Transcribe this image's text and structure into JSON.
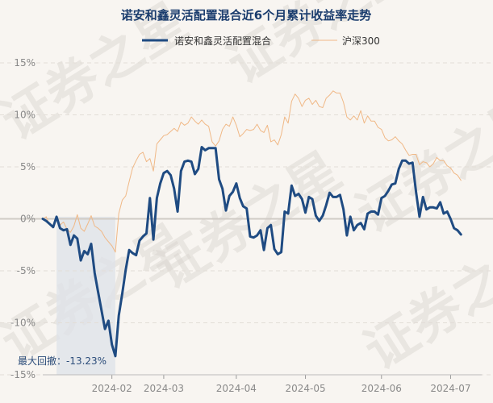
{
  "chart_data": {
    "type": "line",
    "title": "诺安和鑫灵活配置混合近6个月累计收益率走势",
    "watermark": "证券之星",
    "xlabel": "",
    "ylabel": "",
    "ylim": [
      -15,
      15
    ],
    "yticks": [
      15,
      10,
      5,
      0,
      -5,
      -10,
      -15
    ],
    "ytick_labels": [
      "15%",
      "10%",
      "5%",
      "0%",
      "-5%",
      "-10%",
      "-15%"
    ],
    "x_range": [
      0,
      127
    ],
    "xticks": [
      {
        "label": "2024-02",
        "index": 20
      },
      {
        "label": "2024-03",
        "index": 35
      },
      {
        "label": "2024-04",
        "index": 56
      },
      {
        "label": "2024-05",
        "index": 76
      },
      {
        "label": "2024-06",
        "index": 98
      },
      {
        "label": "2024-07",
        "index": 118
      }
    ],
    "legend_position": "top-center",
    "series": [
      {
        "name": "诺安和鑫灵活配置混合",
        "color": "#1f4b82",
        "values": [
          0.0,
          -0.2,
          -0.5,
          -0.8,
          0.2,
          -0.9,
          -1.1,
          -1.0,
          -2.5,
          -1.6,
          -1.9,
          -4.0,
          -3.1,
          -3.4,
          -2.4,
          -5.2,
          -7.0,
          -8.8,
          -10.6,
          -9.8,
          -12.1,
          -13.2,
          -9.3,
          -7.2,
          -4.9,
          -3.0,
          -3.3,
          -3.5,
          -2.1,
          -1.7,
          -1.4,
          2.0,
          -2.0,
          2.0,
          3.4,
          4.4,
          4.6,
          4.2,
          2.9,
          0.7,
          4.6,
          5.5,
          5.6,
          5.5,
          4.3,
          4.8,
          6.9,
          6.6,
          6.8,
          6.8,
          6.8,
          3.8,
          2.9,
          0.8,
          2.2,
          2.6,
          3.4,
          2.0,
          1.2,
          1.0,
          -1.7,
          -1.8,
          -1.6,
          -1.1,
          -3.0,
          -0.9,
          -0.6,
          -2.9,
          -3.4,
          -3.2,
          0.7,
          0.5,
          3.2,
          2.2,
          2.4,
          1.9,
          0.6,
          2.1,
          1.9,
          0.3,
          -0.2,
          0.3,
          1.3,
          2.5,
          2.1,
          2.1,
          2.3,
          0.9,
          -1.6,
          0.2,
          -1.1,
          -0.6,
          -0.4,
          -1.0,
          0.5,
          0.7,
          0.7,
          0.4,
          2.0,
          2.2,
          2.7,
          3.3,
          3.4,
          4.8,
          5.6,
          5.6,
          5.3,
          5.4,
          2.6,
          0.2,
          2.1,
          0.9,
          1.1,
          1.1,
          1.0,
          1.6,
          0.5,
          0.7,
          0.0,
          -0.9,
          -1.1,
          -1.5
        ],
        "line_width": 3
      },
      {
        "name": "沪深300",
        "color": "#f0b886",
        "values": [
          0.0,
          0.2,
          -0.6,
          -0.8,
          0.2,
          -0.6,
          -0.3,
          -1.0,
          -1.3,
          -0.7,
          0.4,
          -0.9,
          -1.2,
          -0.5,
          0.3,
          -0.7,
          -0.9,
          -1.2,
          -1.8,
          -2.2,
          -2.6,
          -3.2,
          0.5,
          1.8,
          2.2,
          3.6,
          4.9,
          5.6,
          6.2,
          6.4,
          5.5,
          5.8,
          4.6,
          7.2,
          7.6,
          8.0,
          8.1,
          8.4,
          8.7,
          8.4,
          9.3,
          9.0,
          9.2,
          9.8,
          9.4,
          9.1,
          9.5,
          9.1,
          8.9,
          7.4,
          7.0,
          7.5,
          8.6,
          9.1,
          8.9,
          9.8,
          9.0,
          7.9,
          8.2,
          8.6,
          8.5,
          8.6,
          9.1,
          8.5,
          8.3,
          9.0,
          7.4,
          7.6,
          7.1,
          8.1,
          9.8,
          9.2,
          11.3,
          12.0,
          11.6,
          10.8,
          11.4,
          11.6,
          11.0,
          11.4,
          10.8,
          10.7,
          11.6,
          11.9,
          12.3,
          12.1,
          12.1,
          11.2,
          9.8,
          9.5,
          9.9,
          9.5,
          10.4,
          9.2,
          9.9,
          9.4,
          9.4,
          8.8,
          8.6,
          7.8,
          7.5,
          7.6,
          7.9,
          7.5,
          7.2,
          6.6,
          6.1,
          6.2,
          6.2,
          5.2,
          5.5,
          5.4,
          5.0,
          5.3,
          5.9,
          5.6,
          5.6,
          5.1,
          4.9,
          4.4,
          4.2,
          3.7
        ],
        "line_width": 1
      }
    ],
    "annotation": {
      "label": "最大回撤：-13.23%",
      "start_index": 4,
      "end_index": 21,
      "start_value": 0.2,
      "end_value": -13.23,
      "shade_color": "#dde2e8"
    }
  }
}
